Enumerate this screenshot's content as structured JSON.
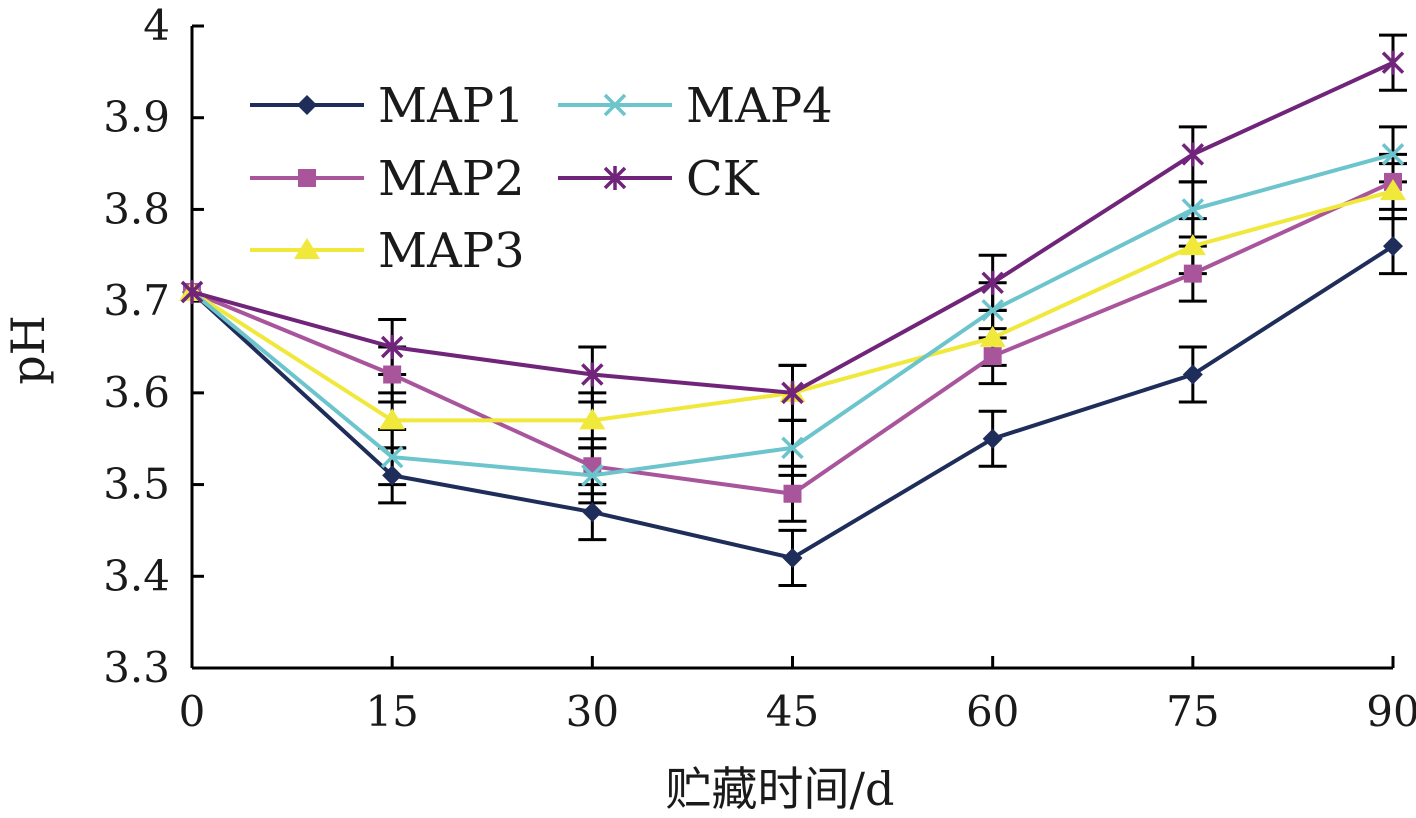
{
  "chart_data": {
    "type": "line",
    "xlabel": "贮藏时间/d",
    "ylabel": "pH",
    "x": [
      0,
      15,
      30,
      45,
      60,
      75,
      90
    ],
    "xlim": [
      0,
      90
    ],
    "ylim": [
      3.3,
      4.0
    ],
    "x_ticks": [
      0,
      15,
      30,
      45,
      60,
      75,
      90
    ],
    "y_ticks": [
      3.3,
      3.4,
      3.5,
      3.6,
      3.7,
      3.8,
      3.9,
      4.0
    ],
    "x_tick_labels": [
      "0",
      "15",
      "30",
      "45",
      "60",
      "75",
      "90"
    ],
    "y_tick_labels": [
      "3.3",
      "3.4",
      "3.5",
      "3.6",
      "3.7",
      "3.8",
      "3.9",
      "4"
    ],
    "grid": false,
    "legend_position": "top-left",
    "series": [
      {
        "name": "MAP1",
        "color": "#1f2d5a",
        "marker": "diamond",
        "values": [
          3.71,
          3.51,
          3.47,
          3.42,
          3.55,
          3.62,
          3.76
        ],
        "errors": [
          0,
          0.03,
          0.03,
          0.03,
          0.03,
          0.03,
          0.03
        ]
      },
      {
        "name": "MAP2",
        "color": "#a8559c",
        "marker": "square",
        "values": [
          3.71,
          3.62,
          3.52,
          3.49,
          3.64,
          3.73,
          3.83
        ],
        "errors": [
          0,
          0.03,
          0.03,
          0.03,
          0.03,
          0.03,
          0.03
        ]
      },
      {
        "name": "MAP3",
        "color": "#f0e83a",
        "marker": "triangle",
        "values": [
          3.71,
          3.57,
          3.57,
          3.6,
          3.66,
          3.76,
          3.82
        ],
        "errors": [
          0,
          0.03,
          0.03,
          0.03,
          0.03,
          0.03,
          0.03
        ]
      },
      {
        "name": "MAP4",
        "color": "#6cc4cc",
        "marker": "x",
        "values": [
          3.71,
          3.53,
          3.51,
          3.54,
          3.69,
          3.8,
          3.86
        ],
        "errors": [
          0,
          0.03,
          0.03,
          0.03,
          0.03,
          0.03,
          0.03
        ]
      },
      {
        "name": "CK",
        "color": "#70247a",
        "marker": "star",
        "values": [
          3.71,
          3.65,
          3.62,
          3.6,
          3.72,
          3.86,
          3.96
        ],
        "errors": [
          0,
          0.03,
          0.03,
          0.03,
          0.03,
          0.03,
          0.03
        ]
      }
    ]
  }
}
